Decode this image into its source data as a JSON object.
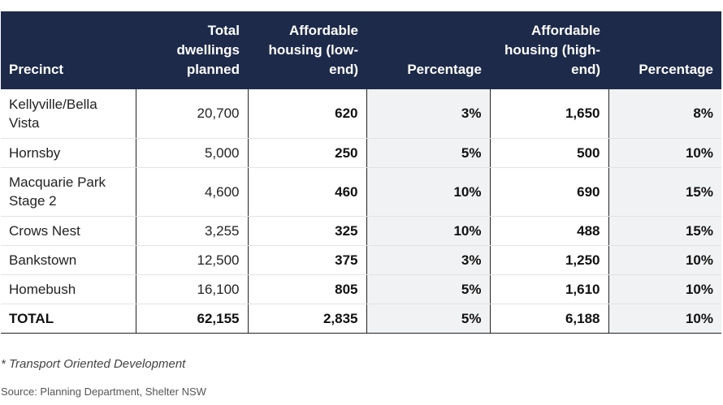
{
  "table": {
    "headers": {
      "precinct": "Precinct",
      "total": "Total dwellings planned",
      "low": "Affordable housing (low-end)",
      "pct_low": "Percentage",
      "high": "Affordable housing (high-end)",
      "pct_high": "Percentage"
    },
    "rows": [
      {
        "precinct": "Kellyville/Bella Vista",
        "total": "20,700",
        "low": "620",
        "pct_low": "3%",
        "high": "1,650",
        "pct_high": "8%"
      },
      {
        "precinct": "Hornsby",
        "total": "5,000",
        "low": "250",
        "pct_low": "5%",
        "high": "500",
        "pct_high": "10%"
      },
      {
        "precinct": "Macquarie Park Stage 2",
        "total": "4,600",
        "low": "460",
        "pct_low": "10%",
        "high": "690",
        "pct_high": "15%"
      },
      {
        "precinct": "Crows Nest",
        "total": "3,255",
        "low": "325",
        "pct_low": "10%",
        "high": "488",
        "pct_high": "15%"
      },
      {
        "precinct": "Bankstown",
        "total": "12,500",
        "low": "375",
        "pct_low": "3%",
        "high": "1,250",
        "pct_high": "10%"
      },
      {
        "precinct": "Homebush",
        "total": "16,100",
        "low": "805",
        "pct_low": "5%",
        "high": "1,610",
        "pct_high": "10%"
      }
    ],
    "total_row": {
      "precinct": "TOTAL",
      "total": "62,155",
      "low": "2,835",
      "pct_low": "5%",
      "high": "6,188",
      "pct_high": "10%"
    }
  },
  "footnote": "* Transport Oriented Development",
  "source": "Source: Planning Department, Shelter NSW"
}
